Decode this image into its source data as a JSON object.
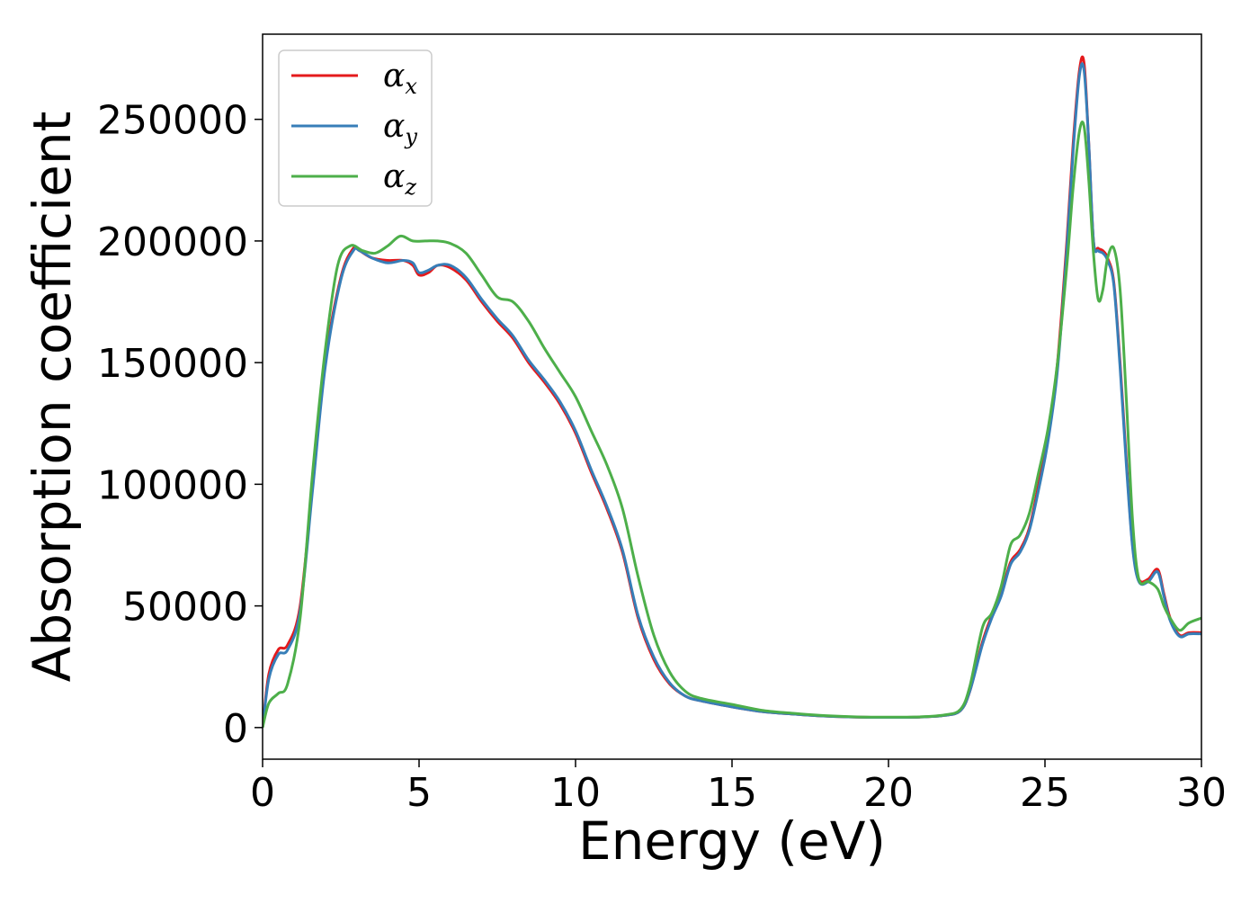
{
  "chart_data": {
    "type": "line",
    "title": "",
    "xlabel": "Energy (eV)",
    "ylabel": "Absorption coefficient",
    "xlim": [
      0,
      30
    ],
    "ylim": [
      -13000,
      285000
    ],
    "xticks": [
      0,
      5,
      10,
      15,
      20,
      25,
      30
    ],
    "xtick_labels": [
      "0",
      "5",
      "10",
      "15",
      "20",
      "25",
      "30"
    ],
    "yticks": [
      0,
      50000,
      100000,
      150000,
      200000,
      250000
    ],
    "ytick_labels": [
      "0",
      "50000",
      "100000",
      "150000",
      "200000",
      "250000"
    ],
    "grid": false,
    "legend_position": "top-left",
    "series": [
      {
        "name": "α",
        "subscript": "x",
        "color": "#e41a1c",
        "x": [
          0,
          0.2,
          0.5,
          0.8,
          1.2,
          1.6,
          2.0,
          2.5,
          2.9,
          3.1,
          3.5,
          4.0,
          4.5,
          4.8,
          5.0,
          5.3,
          5.6,
          6.0,
          6.5,
          7.0,
          7.5,
          8.0,
          8.5,
          9.0,
          9.5,
          10.0,
          10.5,
          11.0,
          11.5,
          12.0,
          12.5,
          13.0,
          13.5,
          14.0,
          15.0,
          16.0,
          17.0,
          18.0,
          19.0,
          20.0,
          21.0,
          21.8,
          22.3,
          22.6,
          23.0,
          23.3,
          23.6,
          23.9,
          24.2,
          24.5,
          24.8,
          25.1,
          25.4,
          25.7,
          25.9,
          26.1,
          26.25,
          26.4,
          26.55,
          26.7,
          26.85,
          27.0,
          27.2,
          27.4,
          27.6,
          27.8,
          28.0,
          28.3,
          28.6,
          28.8,
          29.0,
          29.3,
          29.6,
          30.0
        ],
        "values": [
          0,
          22000,
          32000,
          34000,
          50000,
          100000,
          150000,
          185000,
          197000,
          196000,
          193000,
          192000,
          192000,
          190000,
          186000,
          187000,
          190000,
          189000,
          184000,
          175000,
          167000,
          160000,
          150000,
          142000,
          133000,
          121000,
          105000,
          90000,
          72000,
          45000,
          28000,
          18000,
          13000,
          11000,
          8500,
          6500,
          5500,
          4700,
          4300,
          4200,
          4300,
          5000,
          7000,
          15000,
          35000,
          46000,
          55000,
          68000,
          73000,
          82000,
          100000,
          120000,
          150000,
          200000,
          240000,
          270000,
          273000,
          240000,
          200000,
          197000,
          196000,
          193000,
          183000,
          150000,
          110000,
          75000,
          61000,
          61000,
          65000,
          55000,
          45000,
          38000,
          39000,
          39000
        ]
      },
      {
        "name": "α",
        "subscript": "y",
        "color": "#377eb8",
        "x": [
          0,
          0.2,
          0.5,
          0.8,
          1.2,
          1.6,
          2.0,
          2.5,
          2.9,
          3.1,
          3.5,
          4.0,
          4.5,
          4.8,
          5.0,
          5.3,
          5.6,
          6.0,
          6.5,
          7.0,
          7.5,
          8.0,
          8.5,
          9.0,
          9.5,
          10.0,
          10.5,
          11.0,
          11.5,
          12.0,
          12.5,
          13.0,
          13.5,
          14.0,
          15.0,
          16.0,
          17.0,
          18.0,
          19.0,
          20.0,
          21.0,
          21.8,
          22.3,
          22.6,
          23.0,
          23.3,
          23.6,
          23.9,
          24.2,
          24.5,
          24.8,
          25.1,
          25.4,
          25.7,
          25.9,
          26.1,
          26.25,
          26.4,
          26.55,
          26.7,
          26.85,
          27.0,
          27.2,
          27.4,
          27.6,
          27.8,
          28.0,
          28.3,
          28.6,
          28.8,
          29.0,
          29.3,
          29.6,
          30.0
        ],
        "values": [
          0,
          20000,
          30000,
          32000,
          48000,
          98000,
          148000,
          184000,
          196000,
          196000,
          193000,
          191000,
          192000,
          191000,
          187000,
          188000,
          190000,
          190000,
          185000,
          176000,
          168000,
          161000,
          151000,
          143000,
          134000,
          122000,
          106000,
          91000,
          73000,
          46000,
          29000,
          18500,
          13000,
          11000,
          8500,
          6500,
          5500,
          4700,
          4300,
          4200,
          4300,
          5000,
          7000,
          15000,
          34000,
          45000,
          54000,
          67000,
          72000,
          81000,
          98000,
          118000,
          147000,
          197000,
          237000,
          268000,
          270000,
          240000,
          200000,
          196000,
          195000,
          192000,
          182000,
          148000,
          108000,
          74000,
          60000,
          60000,
          64000,
          54000,
          44000,
          37500,
          38500,
          38500
        ]
      },
      {
        "name": "α",
        "subscript": "z",
        "color": "#4daf4a",
        "x": [
          0,
          0.2,
          0.5,
          0.8,
          1.2,
          1.6,
          2.0,
          2.4,
          2.8,
          3.2,
          3.6,
          4.0,
          4.4,
          4.8,
          5.2,
          5.6,
          6.0,
          6.5,
          7.0,
          7.5,
          8.0,
          8.5,
          9.0,
          9.5,
          10.0,
          10.5,
          11.0,
          11.5,
          12.0,
          12.5,
          13.0,
          13.5,
          14.0,
          15.0,
          16.0,
          17.0,
          18.0,
          19.0,
          20.0,
          21.0,
          21.8,
          22.3,
          22.6,
          23.0,
          23.3,
          23.6,
          23.9,
          24.2,
          24.5,
          24.8,
          25.1,
          25.4,
          25.7,
          25.9,
          26.1,
          26.25,
          26.4,
          26.55,
          26.7,
          26.85,
          27.0,
          27.2,
          27.4,
          27.6,
          27.8,
          28.0,
          28.3,
          28.6,
          28.8,
          29.0,
          29.3,
          29.6,
          30.0
        ],
        "values": [
          0,
          10000,
          14000,
          18000,
          45000,
          105000,
          155000,
          190000,
          198000,
          196000,
          195000,
          198000,
          202000,
          200000,
          200000,
          200000,
          199000,
          195000,
          186000,
          177000,
          175000,
          167000,
          156000,
          146000,
          136000,
          122000,
          108000,
          90000,
          62000,
          38000,
          23000,
          15000,
          12000,
          9500,
          7000,
          5800,
          4900,
          4400,
          4300,
          4400,
          5200,
          7500,
          17000,
          41000,
          47000,
          58000,
          75000,
          79000,
          88000,
          105000,
          123000,
          150000,
          190000,
          222000,
          245000,
          247000,
          225000,
          195000,
          176000,
          180000,
          193000,
          197000,
          180000,
          135000,
          85000,
          61000,
          60000,
          57000,
          50000,
          45000,
          40000,
          43000,
          45000
        ]
      }
    ]
  }
}
